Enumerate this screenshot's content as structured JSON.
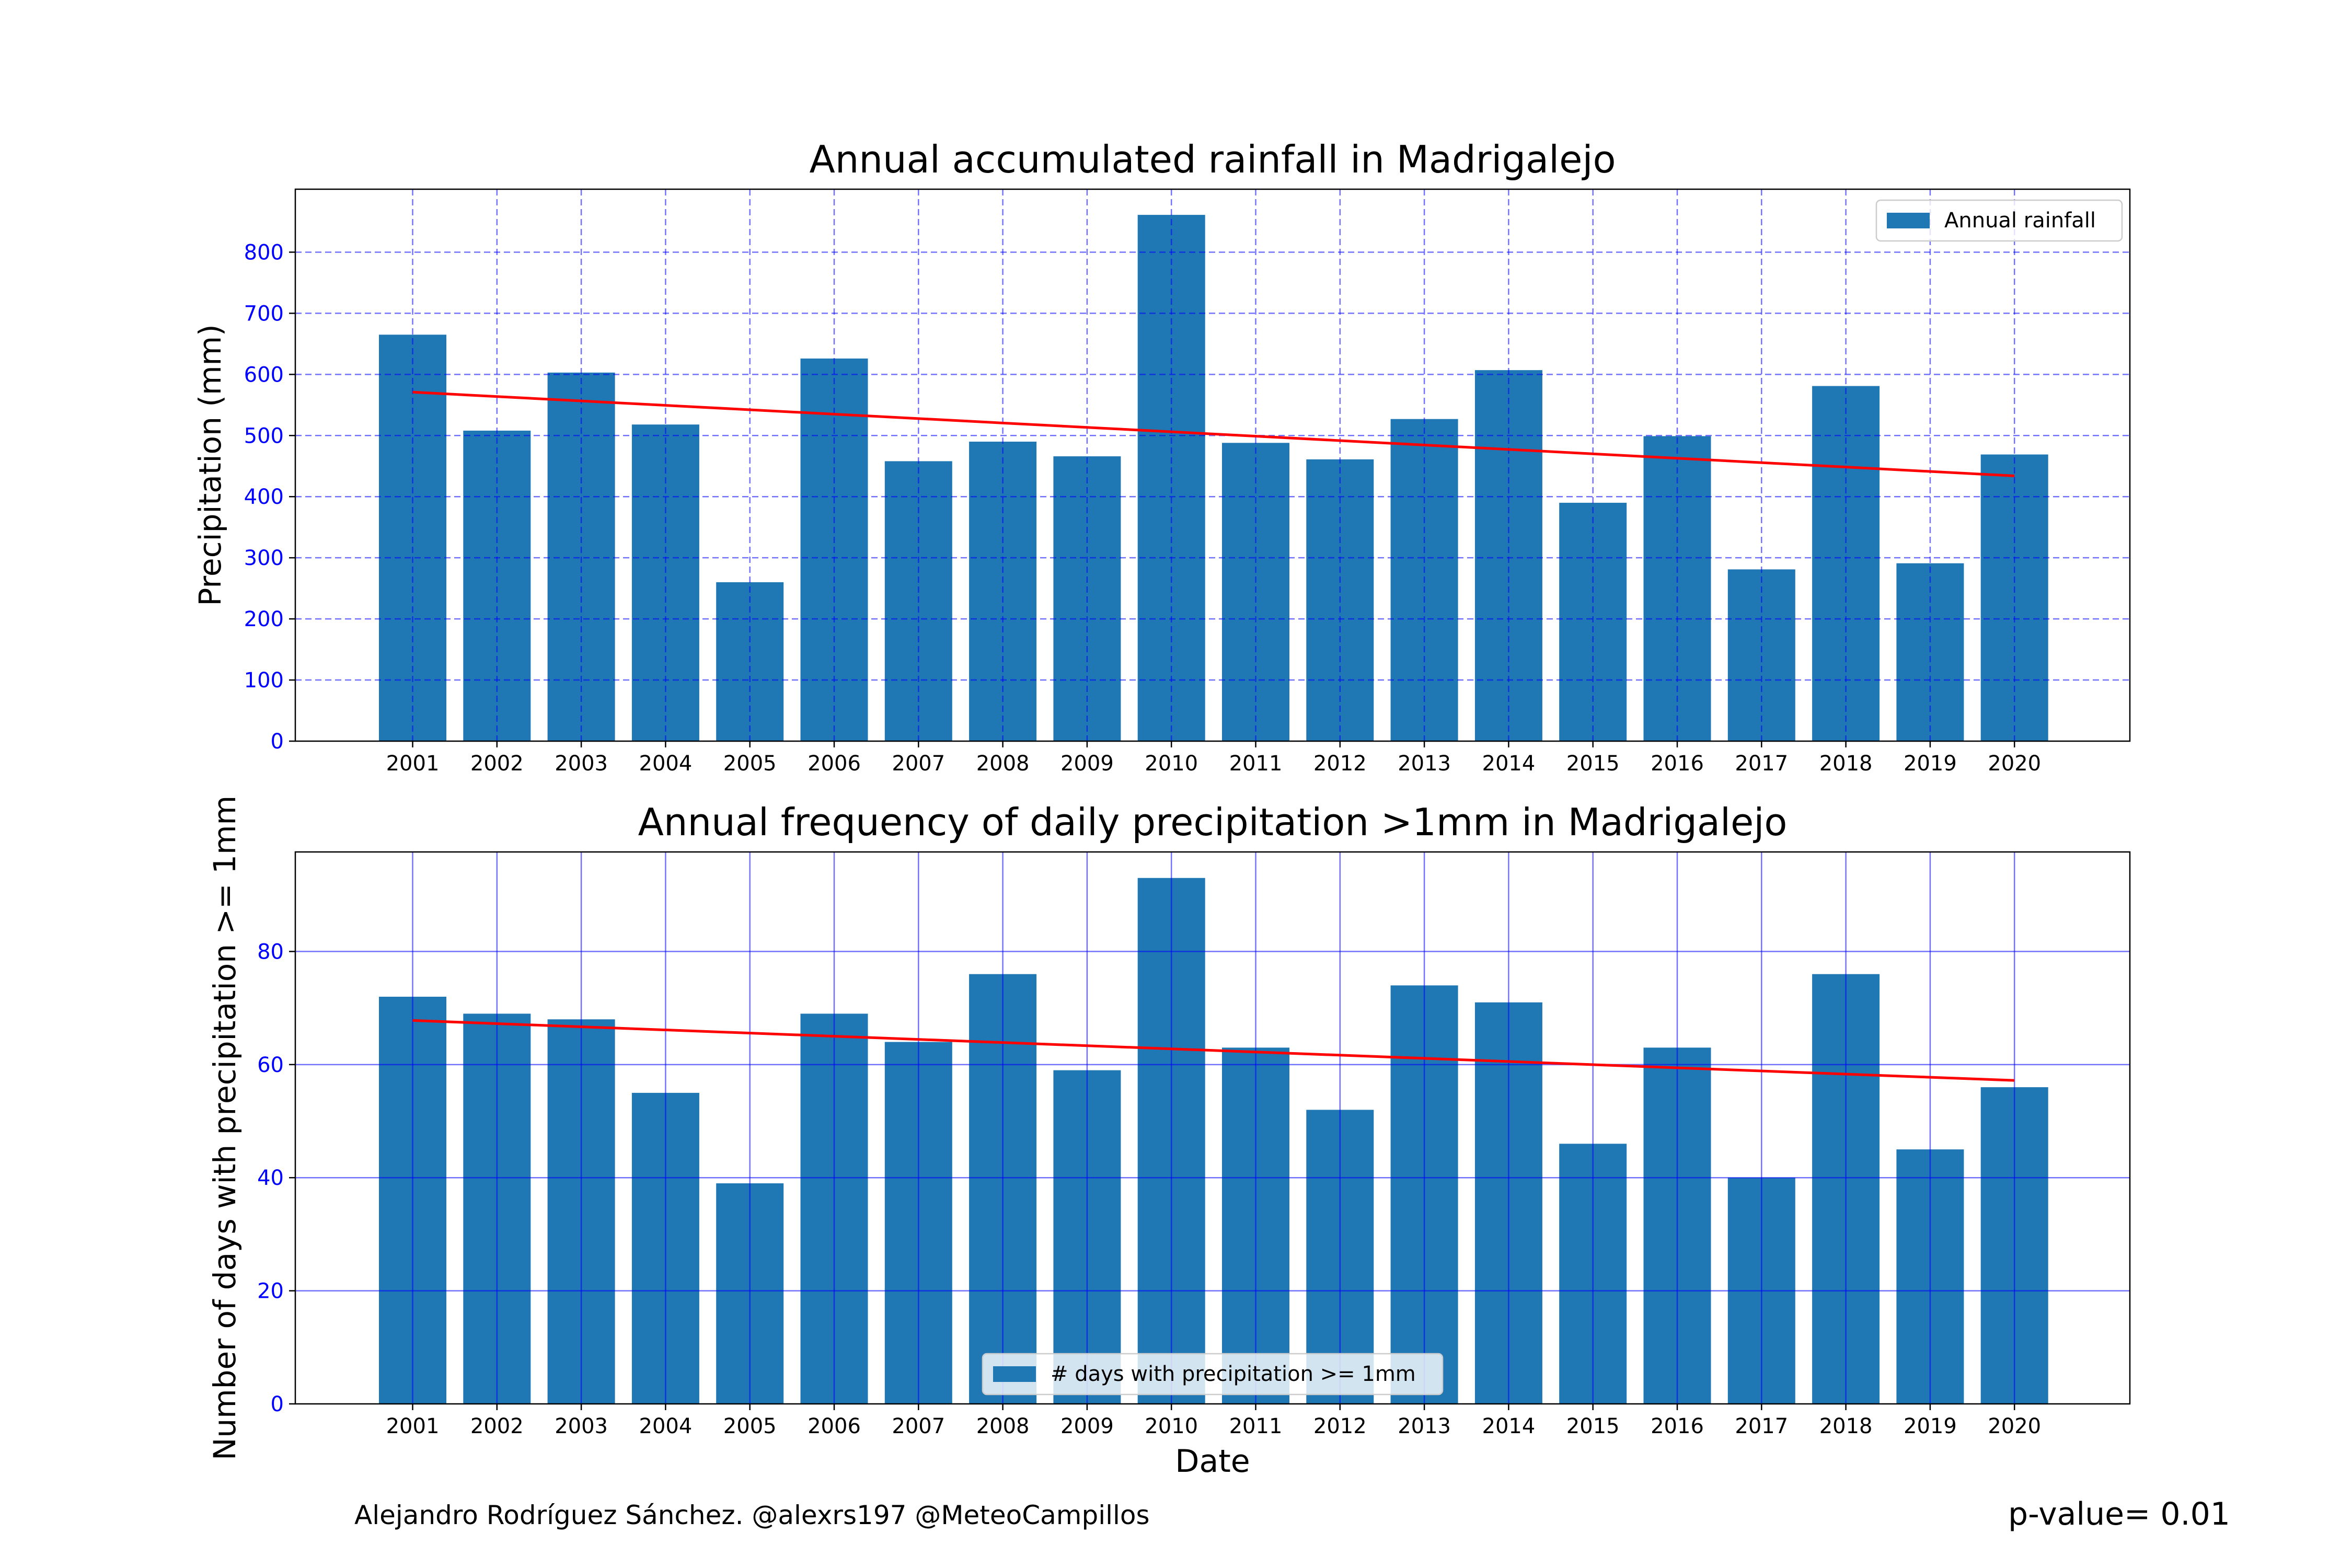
{
  "chart_data": [
    {
      "type": "bar",
      "title": "Annual accumulated rainfall in Madrigalejo",
      "xlabel": "",
      "ylabel": "Precipitation (mm)",
      "categories": [
        "2001",
        "2002",
        "2003",
        "2004",
        "2005",
        "2006",
        "2007",
        "2008",
        "2009",
        "2010",
        "2011",
        "2012",
        "2013",
        "2014",
        "2015",
        "2016",
        "2017",
        "2018",
        "2019",
        "2020"
      ],
      "series": [
        {
          "name": "Annual rainfall",
          "values": [
            665,
            508,
            603,
            518,
            260,
            626,
            458,
            490,
            466,
            861,
            488,
            461,
            527,
            607,
            390,
            499,
            281,
            581,
            291,
            469
          ]
        }
      ],
      "trend": {
        "start": 571,
        "end": 434
      },
      "ylim": [
        0,
        903
      ],
      "yticks": [
        0,
        100,
        200,
        300,
        400,
        500,
        600,
        700,
        800
      ],
      "grid": {
        "style": "dashed",
        "color": "#0000ff"
      },
      "legend_position": "upper-right",
      "colors": {
        "bar": "#1f77b4",
        "trend": "#ff0000",
        "tick_labels": "#0000ff"
      }
    },
    {
      "type": "bar",
      "title": "Annual frequency of daily precipitation >1mm in Madrigalejo",
      "xlabel": "Date",
      "ylabel": "Number of days with precipitation >= 1mm",
      "categories": [
        "2001",
        "2002",
        "2003",
        "2004",
        "2005",
        "2006",
        "2007",
        "2008",
        "2009",
        "2010",
        "2011",
        "2012",
        "2013",
        "2014",
        "2015",
        "2016",
        "2017",
        "2018",
        "2019",
        "2020"
      ],
      "series": [
        {
          "name": "# days with precipitation >= 1mm",
          "values": [
            72,
            69,
            68,
            55,
            39,
            69,
            64,
            76,
            59,
            93,
            63,
            52,
            74,
            71,
            46,
            63,
            40,
            76,
            45,
            56
          ]
        }
      ],
      "trend": {
        "start": 67.8,
        "end": 57.2
      },
      "ylim": [
        0,
        97.6
      ],
      "yticks": [
        0,
        20,
        40,
        60,
        80
      ],
      "grid": {
        "style": "solid",
        "color": "#0000ff"
      },
      "legend_position": "lower-center",
      "colors": {
        "bar": "#1f77b4",
        "trend": "#ff0000",
        "tick_labels": "#0000ff"
      }
    }
  ],
  "footer": {
    "credit": "Alejandro Rodríguez Sánchez. @alexrs197 @MeteoCampillos",
    "pvalue": "p-value= 0.01"
  }
}
